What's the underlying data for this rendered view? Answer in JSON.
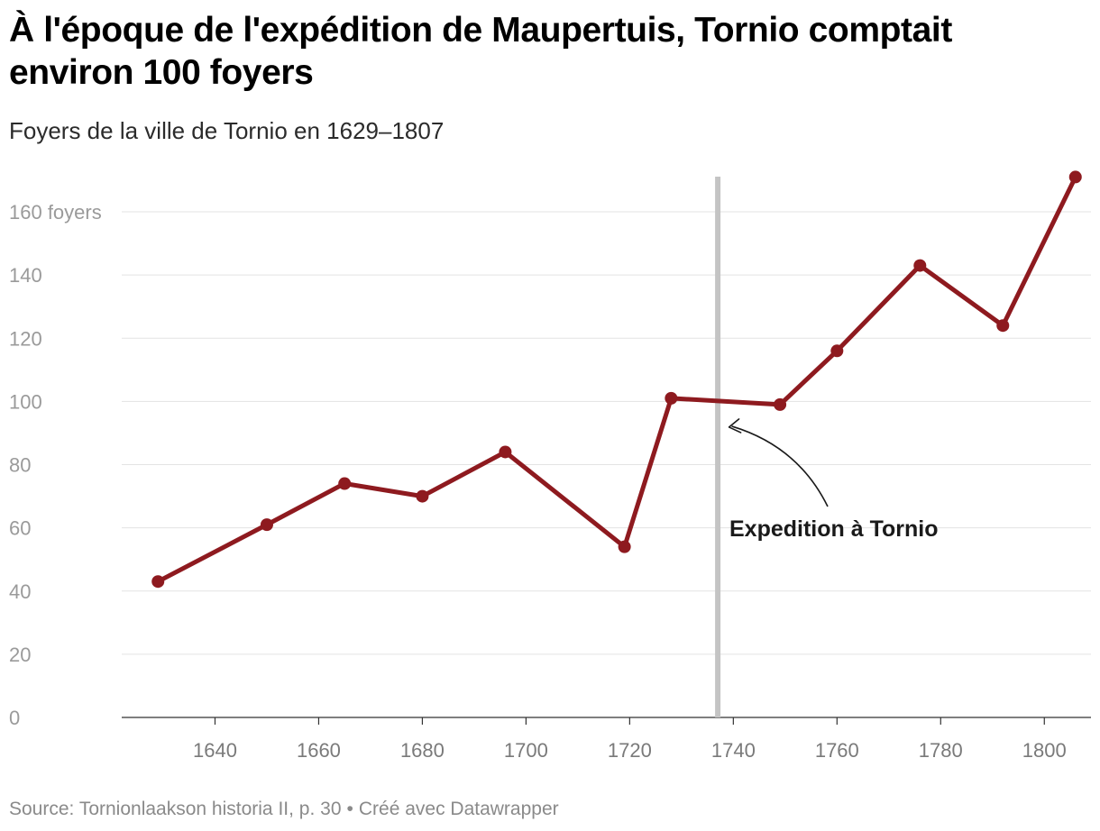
{
  "header": {
    "title": "À l'époque de l'expédition de Maupertuis, Tornio comptait environ 100 foyers",
    "subtitle": "Foyers de la ville de Tornio en 1629–1807"
  },
  "footer": {
    "source": "Source: Tornionlaakson historia II, p. 30",
    "separator": "•",
    "credit": "Créé avec Datawrapper"
  },
  "chart_data": {
    "type": "line",
    "title": "À l'époque de l'expédition de Maupertuis, Tornio comptait environ 100 foyers",
    "subtitle": "Foyers de la ville de Tornio en 1629–1807",
    "xlabel": "",
    "ylabel": "",
    "xlim": [
      1622,
      1809
    ],
    "ylim": [
      0,
      160
    ],
    "grid": true,
    "y_ticks": [
      0,
      20,
      40,
      60,
      80,
      100,
      120,
      140,
      160
    ],
    "y_tick_labels": [
      "0",
      "20",
      "40",
      "60",
      "80",
      "100",
      "120",
      "140",
      "160 foyers"
    ],
    "x_ticks": [
      1640,
      1660,
      1680,
      1700,
      1720,
      1740,
      1760,
      1780,
      1800
    ],
    "x_tick_labels": [
      "1640",
      "1660",
      "1680",
      "1700",
      "1720",
      "1740",
      "1760",
      "1780",
      "1800"
    ],
    "series": [
      {
        "name": "Foyers",
        "color": "#8e1a1f",
        "x": [
          1629,
          1650,
          1665,
          1680,
          1696,
          1719,
          1728,
          1749,
          1760,
          1776,
          1792,
          1806
        ],
        "y": [
          43,
          61,
          74,
          70,
          84,
          54,
          101,
          99,
          116,
          143,
          124,
          171
        ]
      }
    ],
    "reference_line": {
      "x": 1737,
      "color": "#c4c4c4"
    },
    "annotation": {
      "text": "Expedition à Tornio",
      "target_x": 1739,
      "target_y": 91
    }
  }
}
